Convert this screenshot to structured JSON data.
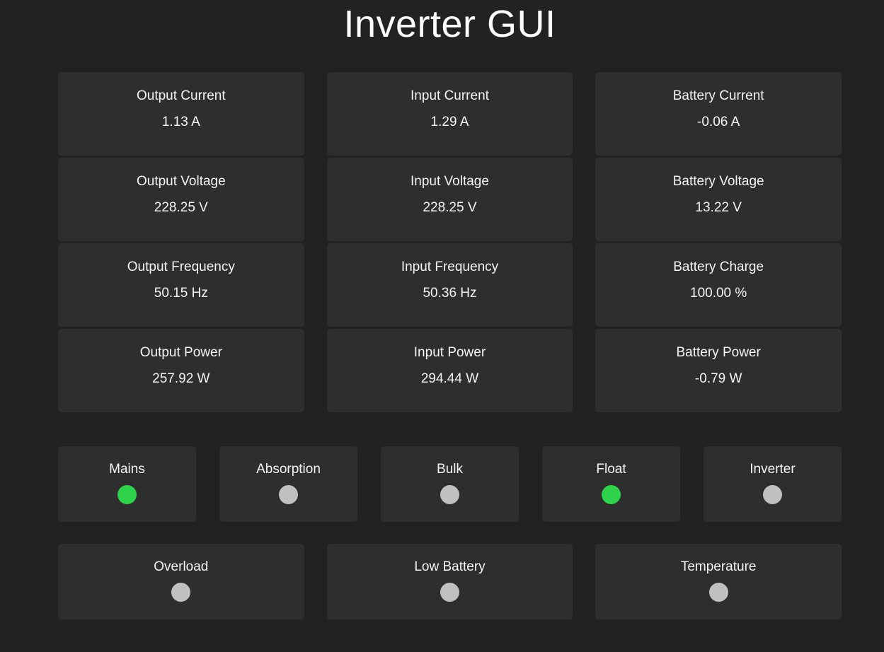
{
  "title": "Inverter GUI",
  "colors": {
    "page_bg": "#222222",
    "card_bg": "#2e2e2e",
    "text": "#f4f4f4",
    "title_text": "#fdfdfd",
    "led_on": "#2fd24b",
    "led_off": "#c0c0c0"
  },
  "metrics": {
    "cards": [
      {
        "label": "Output Current",
        "value": "1.13 A"
      },
      {
        "label": "Input Current",
        "value": "1.29 A"
      },
      {
        "label": "Battery Current",
        "value": "-0.06 A"
      },
      {
        "label": "Output Voltage",
        "value": "228.25 V"
      },
      {
        "label": "Input Voltage",
        "value": "228.25 V"
      },
      {
        "label": "Battery Voltage",
        "value": "13.22 V"
      },
      {
        "label": "Output Frequency",
        "value": "50.15 Hz"
      },
      {
        "label": "Input Frequency",
        "value": "50.36 Hz"
      },
      {
        "label": "Battery Charge",
        "value": "100.00 %"
      },
      {
        "label": "Output Power",
        "value": "257.92 W"
      },
      {
        "label": "Input Power",
        "value": "294.44 W"
      },
      {
        "label": "Battery Power",
        "value": "-0.79 W"
      }
    ]
  },
  "indicators": {
    "row1": [
      {
        "label": "Mains",
        "state": "on"
      },
      {
        "label": "Absorption",
        "state": "off"
      },
      {
        "label": "Bulk",
        "state": "off"
      },
      {
        "label": "Float",
        "state": "on"
      },
      {
        "label": "Inverter",
        "state": "off"
      }
    ],
    "row2": [
      {
        "label": "Overload",
        "state": "off"
      },
      {
        "label": "Low Battery",
        "state": "off"
      },
      {
        "label": "Temperature",
        "state": "off"
      }
    ]
  }
}
